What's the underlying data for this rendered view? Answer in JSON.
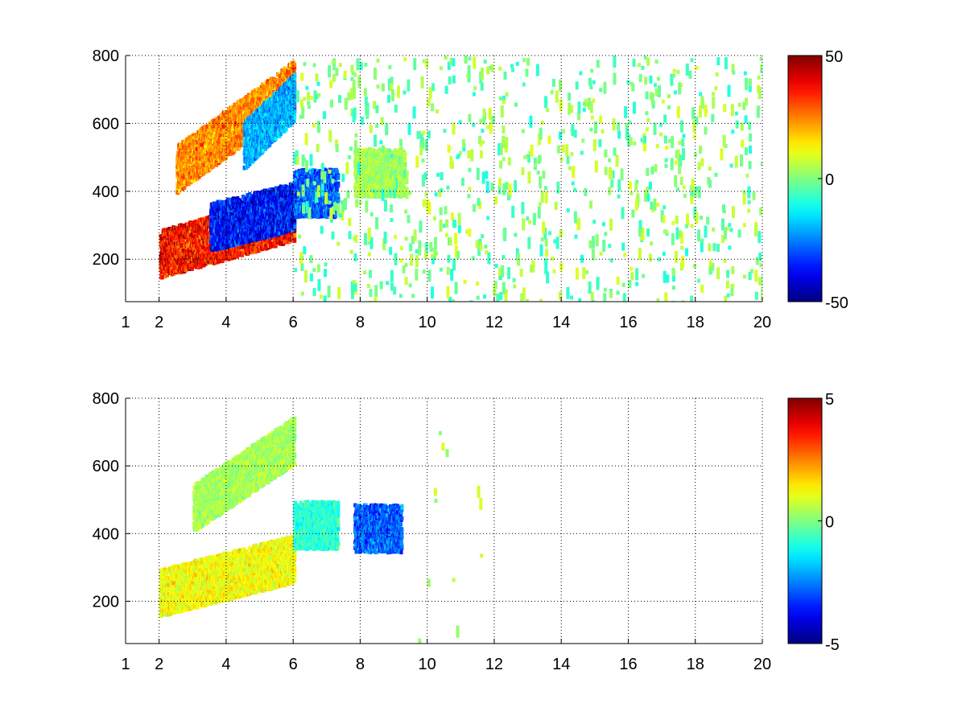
{
  "chart_data": [
    {
      "type": "heatmap",
      "title": "",
      "xlabel": "",
      "ylabel": "",
      "xlim": [
        1,
        20
      ],
      "ylim": [
        75,
        800
      ],
      "x_ticks": [
        "1",
        "2",
        "4",
        "6",
        "8",
        "10",
        "12",
        "14",
        "16",
        "18",
        "20"
      ],
      "x_tick_values": [
        1,
        2,
        4,
        6,
        8,
        10,
        12,
        14,
        16,
        18,
        20
      ],
      "y_ticks": [
        "200",
        "400",
        "600",
        "800"
      ],
      "y_tick_values": [
        200,
        400,
        600,
        800
      ],
      "grid": true,
      "colormap": "jet",
      "colorbar": {
        "min": -50,
        "max": 50,
        "tick_labels": [
          "50",
          "0",
          "-50"
        ],
        "tick_values": [
          50,
          0,
          -50
        ]
      },
      "features": [
        {
          "x_range": [
            2,
            6
          ],
          "y_center_at_start": 220,
          "y_center_at_end": 330,
          "value": 45
        },
        {
          "x_range": [
            3.5,
            6
          ],
          "y_center_at_start": 300,
          "y_center_at_end": 360,
          "value": -45
        },
        {
          "x_range": [
            2.5,
            6
          ],
          "y_center_at_start": 470,
          "y_center_at_end": 720,
          "value": 30
        },
        {
          "x_range": [
            4.5,
            6
          ],
          "y_center_at_start": 540,
          "y_center_at_end": 680,
          "value": -25
        },
        {
          "x_range": [
            6,
            7.3
          ],
          "y_center_at_start": 400,
          "y_center_at_end": 400,
          "value": -35
        },
        {
          "x_range": [
            7.8,
            9.3
          ],
          "y_center_at_start": 460,
          "y_center_at_end": 460,
          "value": 5
        }
      ],
      "scatter_noise": {
        "x_range": [
          6,
          20
        ],
        "value_range": [
          -10,
          10
        ]
      }
    },
    {
      "type": "heatmap",
      "title": "",
      "xlabel": "",
      "ylabel": "",
      "xlim": [
        1,
        20
      ],
      "ylim": [
        75,
        800
      ],
      "x_ticks": [
        "1",
        "2",
        "4",
        "6",
        "8",
        "10",
        "12",
        "14",
        "16",
        "18",
        "20"
      ],
      "x_tick_values": [
        1,
        2,
        4,
        6,
        8,
        10,
        12,
        14,
        16,
        18,
        20
      ],
      "y_ticks": [
        "200",
        "400",
        "600",
        "800"
      ],
      "y_tick_values": [
        200,
        400,
        600,
        800
      ],
      "grid": true,
      "colormap": "jet",
      "colorbar": {
        "min": -5,
        "max": 5,
        "tick_labels": [
          "5",
          "0",
          "-5"
        ],
        "tick_values": [
          5,
          0,
          -5
        ]
      },
      "features": [
        {
          "x_range": [
            2,
            6
          ],
          "y_center_at_start": 230,
          "y_center_at_end": 330,
          "value": 1.5
        },
        {
          "x_range": [
            3,
            6
          ],
          "y_center_at_start": 480,
          "y_center_at_end": 680,
          "value": 0.5
        },
        {
          "x_range": [
            6,
            7.3
          ],
          "y_center_at_start": 430,
          "y_center_at_end": 430,
          "value": -1
        },
        {
          "x_range": [
            7.8,
            9.2
          ],
          "y_center_at_start": 420,
          "y_center_at_end": 420,
          "value": -3.5
        }
      ],
      "scatter_noise": {
        "x_range": [
          9.5,
          12
        ],
        "value_range": [
          0,
          1
        ]
      }
    }
  ]
}
